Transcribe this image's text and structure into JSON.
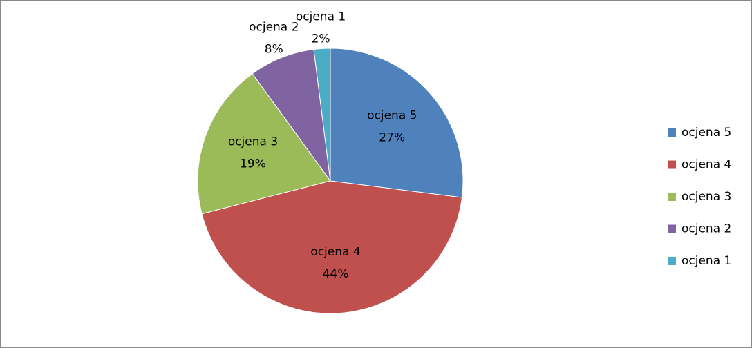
{
  "chart_data": {
    "type": "pie",
    "categories": [
      "ocjena 5",
      "ocjena 4",
      "ocjena 3",
      "ocjena 2",
      "ocjena 1"
    ],
    "values": [
      27,
      44,
      19,
      8,
      2
    ],
    "value_labels": [
      "27%",
      "44%",
      "19%",
      "8%",
      "2%"
    ],
    "colors": [
      "#4f81bd",
      "#c0504d",
      "#9bbb59",
      "#8064a2",
      "#4bacc6"
    ],
    "legend": "right"
  }
}
